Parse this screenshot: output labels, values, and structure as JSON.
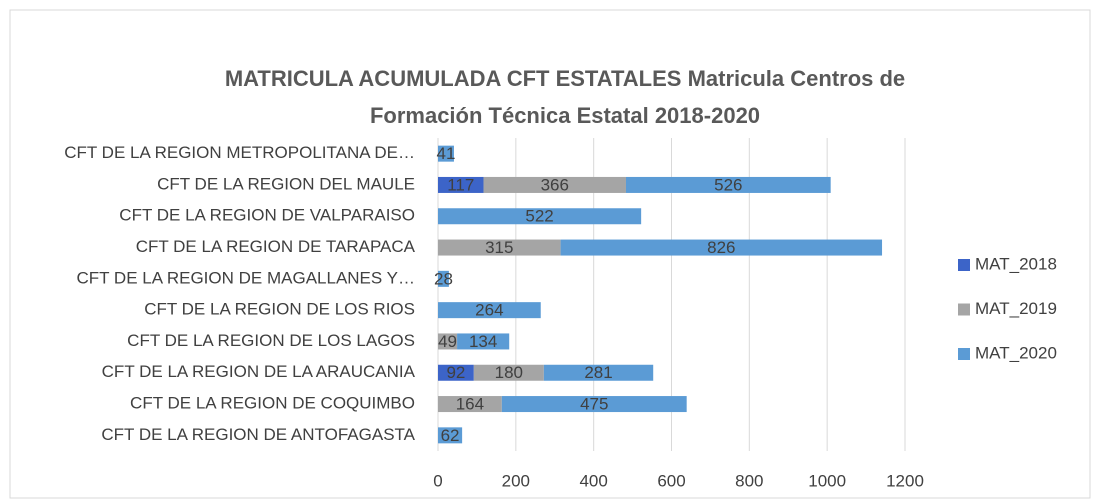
{
  "chart_data": {
    "type": "stacked-barh",
    "title": "MATRICULA ACUMULADA CFT ESTATALES Matricula Centros de Formación Técnica Estatal 2018-2020",
    "categories": [
      "CFT DE LA REGION METROPOLITANA DE…",
      "CFT DE LA REGION DEL MAULE",
      "CFT DE LA REGION DE VALPARAISO",
      "CFT DE LA REGION DE TARAPACA",
      "CFT DE LA REGION DE MAGALLANES Y…",
      "CFT DE LA REGION DE LOS RIOS",
      "CFT DE LA REGION DE LOS LAGOS",
      "CFT DE LA REGION DE LA ARAUCANIA",
      "CFT DE LA REGION DE COQUIMBO",
      "CFT DE LA REGION DE ANTOFAGASTA"
    ],
    "series": [
      {
        "name": "MAT_2018",
        "color": "#3c64c8",
        "values": [
          null,
          117,
          null,
          null,
          null,
          null,
          null,
          92,
          null,
          null
        ]
      },
      {
        "name": "MAT_2019",
        "color": "#a5a5a5",
        "values": [
          null,
          366,
          null,
          315,
          null,
          null,
          49,
          180,
          164,
          null
        ]
      },
      {
        "name": "MAT_2020",
        "color": "#5b9bd5",
        "values": [
          41,
          526,
          522,
          826,
          28,
          264,
          134,
          281,
          475,
          62
        ]
      }
    ],
    "xlim": [
      0,
      1200
    ],
    "xticks": [
      0,
      200,
      400,
      600,
      800,
      1000,
      1200
    ],
    "grid": true,
    "legend": "right"
  }
}
